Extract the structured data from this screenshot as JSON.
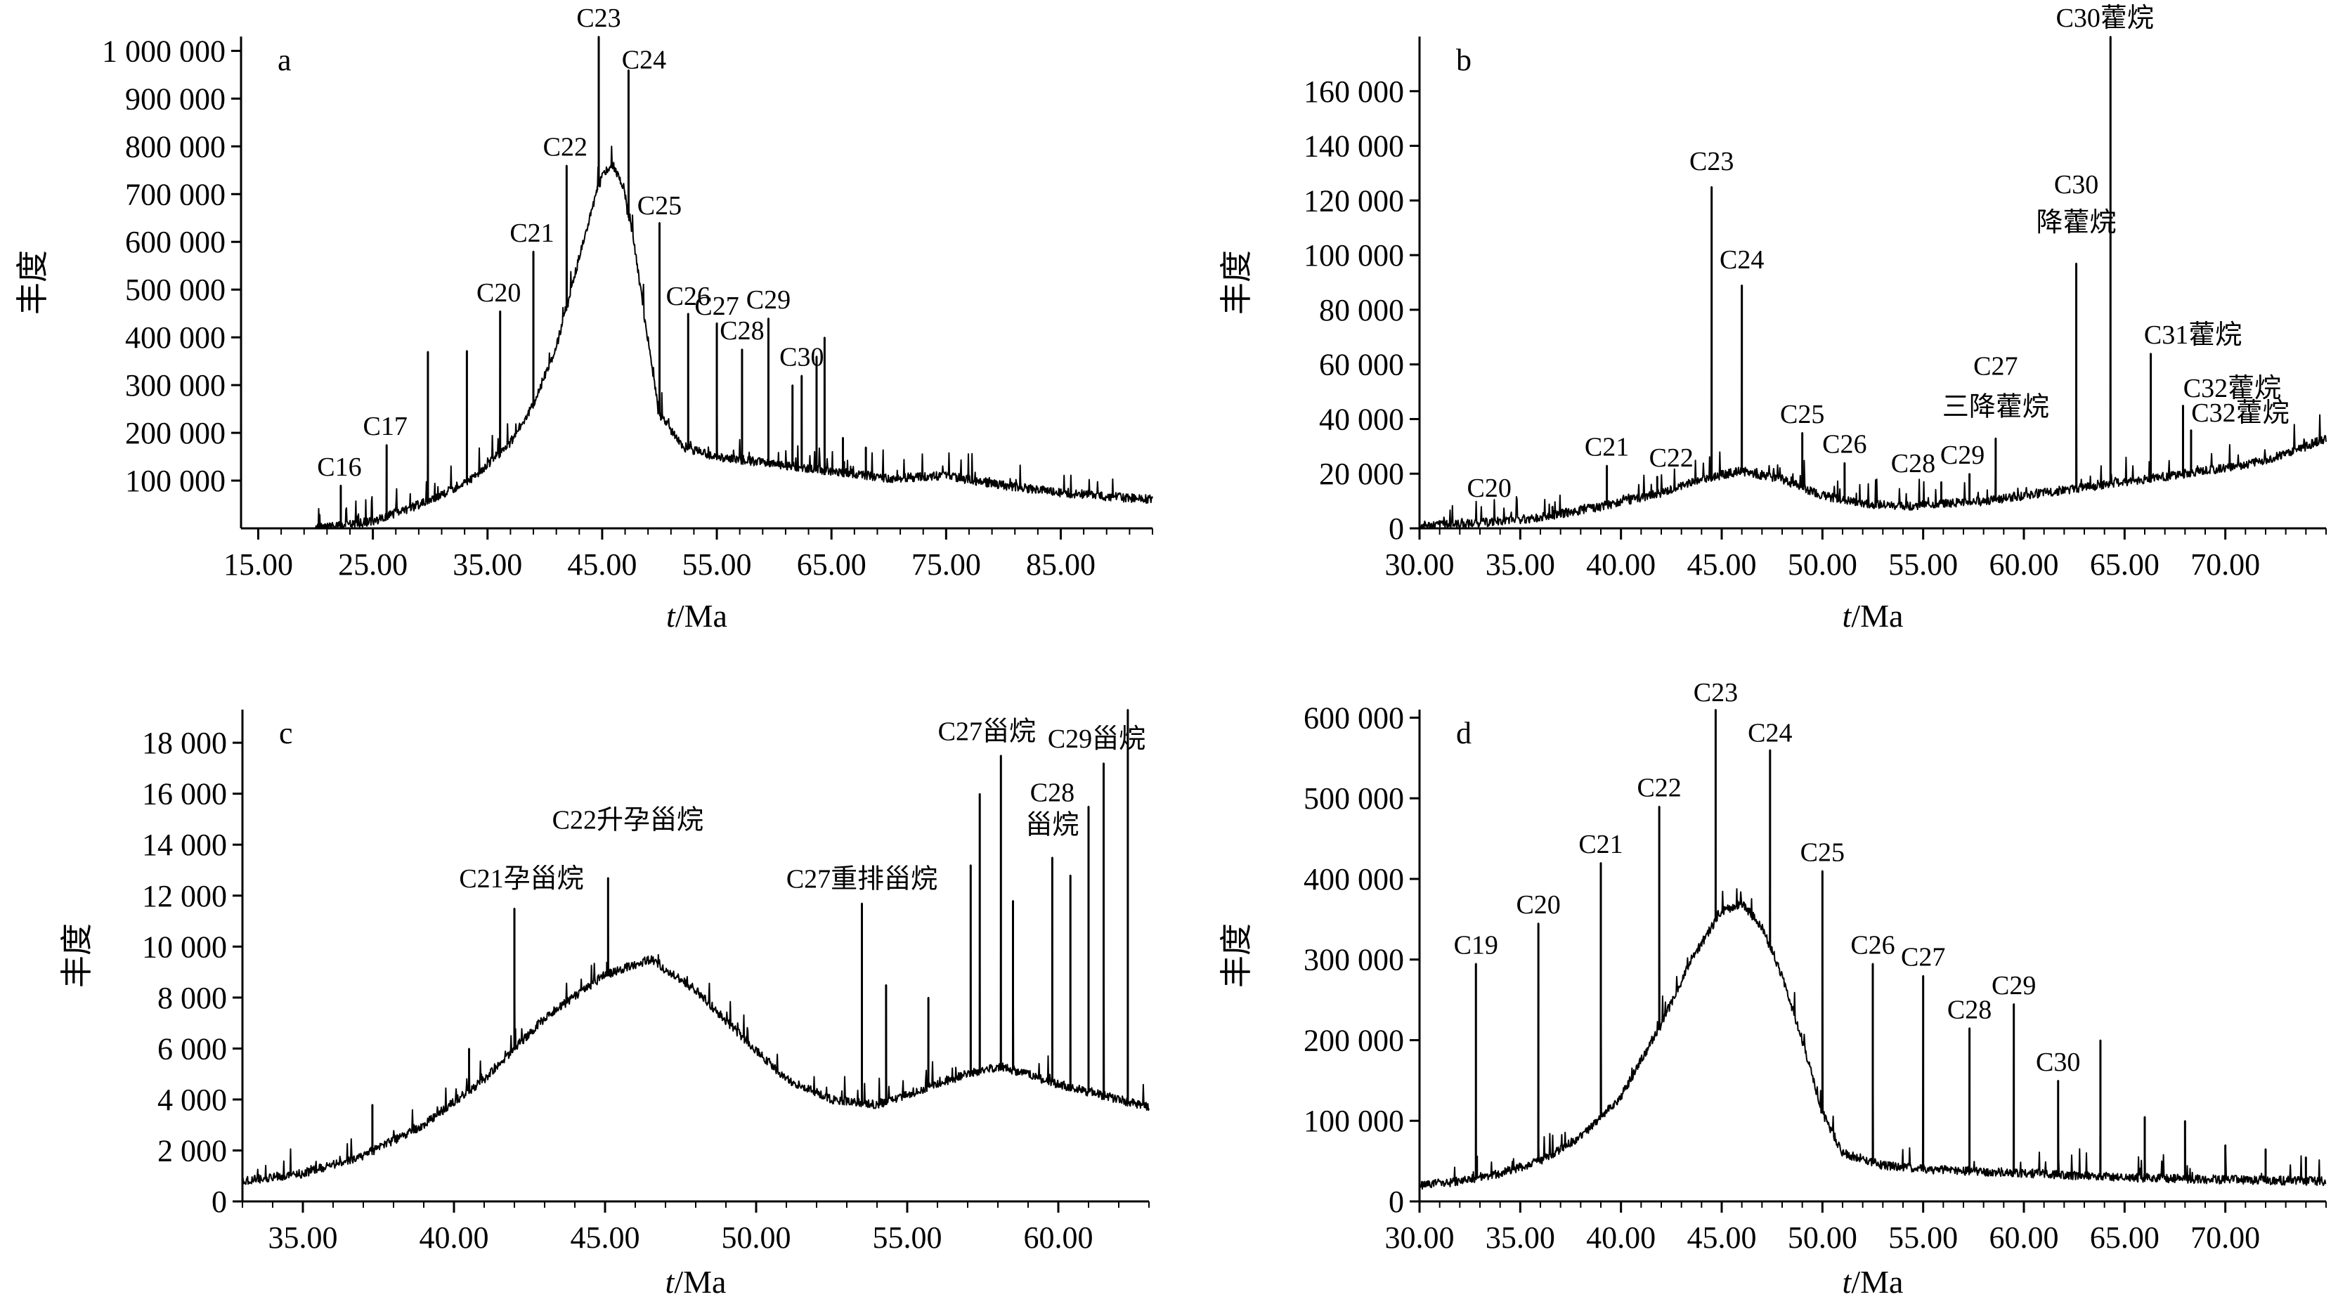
{
  "chart_data": [
    {
      "id": "a",
      "type": "line",
      "panel_label": "a",
      "ylabel": "丰度",
      "xlabel_italic": "t",
      "xlabel_unit": "/Ma",
      "xlim": [
        13.5,
        93
      ],
      "ylim": [
        0,
        1030000
      ],
      "xticks": [
        15,
        25,
        35,
        45,
        55,
        65,
        75,
        85
      ],
      "xtick_labels": [
        "15.00",
        "25.00",
        "35.00",
        "45.00",
        "55.00",
        "65.00",
        "75.00",
        "85.00"
      ],
      "yticks": [
        100000,
        200000,
        300000,
        400000,
        500000,
        600000,
        700000,
        800000,
        900000,
        1000000
      ],
      "ytick_labels": [
        "100 000",
        "200 000",
        "300 000",
        "400 000",
        "500 000",
        "600 000",
        "700 000",
        "800 000",
        "900 000",
        "1 000 000"
      ],
      "baseline": {
        "x": [
          20,
          22,
          25,
          28,
          31,
          34,
          37,
          39,
          41,
          42.5,
          44,
          45,
          46,
          47,
          48,
          49,
          50,
          52,
          55,
          60,
          65,
          70,
          75,
          80,
          85,
          90,
          93
        ],
        "y": [
          0,
          5000,
          15000,
          40000,
          70000,
          110000,
          180000,
          260000,
          380000,
          520000,
          660000,
          740000,
          760000,
          700000,
          560000,
          390000,
          240000,
          170000,
          150000,
          135000,
          120000,
          105000,
          110000,
          90000,
          75000,
          65000,
          60000
        ]
      },
      "peaks": [
        {
          "x": 22.2,
          "y": 90000,
          "label": "C16"
        },
        {
          "x": 26.2,
          "y": 175000,
          "label": "C17"
        },
        {
          "x": 29.8,
          "y": 370000,
          "label": ""
        },
        {
          "x": 33.2,
          "y": 372000,
          "label": ""
        },
        {
          "x": 36.1,
          "y": 455000,
          "label": "C20"
        },
        {
          "x": 39.0,
          "y": 580000,
          "label": "C21"
        },
        {
          "x": 41.9,
          "y": 760000,
          "label": "C22"
        },
        {
          "x": 44.7,
          "y": 1030000,
          "label": "C23"
        },
        {
          "x": 47.3,
          "y": 960000,
          "label": "C24"
        },
        {
          "x": 50.0,
          "y": 640000,
          "label": "C25"
        },
        {
          "x": 52.5,
          "y": 450000,
          "label": "C26"
        },
        {
          "x": 55.0,
          "y": 430000,
          "label": "C27"
        },
        {
          "x": 57.2,
          "y": 375000,
          "label": "C28"
        },
        {
          "x": 59.5,
          "y": 440000,
          "label": "C29"
        },
        {
          "x": 61.6,
          "y": 300000,
          "label": ""
        },
        {
          "x": 62.4,
          "y": 320000,
          "label": "C30"
        },
        {
          "x": 63.7,
          "y": 360000,
          "label": ""
        },
        {
          "x": 64.4,
          "y": 400000,
          "label": ""
        },
        {
          "x": 66.0,
          "y": 190000,
          "label": ""
        },
        {
          "x": 68.0,
          "y": 170000,
          "label": ""
        }
      ]
    },
    {
      "id": "b",
      "type": "line",
      "panel_label": "b",
      "ylabel": "丰度",
      "xlabel_italic": "t",
      "xlabel_unit": "/Ma",
      "xlim": [
        30,
        75
      ],
      "ylim": [
        0,
        180000
      ],
      "xticks": [
        30,
        35,
        40,
        45,
        50,
        55,
        60,
        65,
        70
      ],
      "xtick_labels": [
        "30.00",
        "35.00",
        "40.00",
        "45.00",
        "50.00",
        "55.00",
        "60.00",
        "65.00",
        "70.00"
      ],
      "yticks": [
        0,
        20000,
        40000,
        60000,
        80000,
        100000,
        120000,
        140000,
        160000
      ],
      "ytick_labels": [
        "0",
        "20 000",
        "40 000",
        "60 000",
        "80 000",
        "100 000",
        "120 000",
        "140 000",
        "160 000"
      ],
      "baseline": {
        "x": [
          30,
          33,
          36,
          39,
          42,
          44,
          46,
          48,
          50,
          52,
          54,
          56,
          58,
          60,
          62,
          64,
          66,
          68,
          70,
          72,
          74,
          75
        ],
        "y": [
          1000,
          2000,
          4000,
          8000,
          13000,
          18000,
          21000,
          18000,
          12000,
          9000,
          8000,
          9000,
          10000,
          12000,
          14000,
          16000,
          18000,
          20000,
          22000,
          25000,
          30000,
          33000
        ]
      },
      "peaks": [
        {
          "x": 36.6,
          "y": 8000,
          "label": "C20"
        },
        {
          "x": 39.3,
          "y": 23000,
          "label": "C21"
        },
        {
          "x": 41.8,
          "y": 19000,
          "label": "C22"
        },
        {
          "x": 44.5,
          "y": 125000,
          "label": "C23"
        },
        {
          "x": 46.0,
          "y": 89000,
          "label": "C24"
        },
        {
          "x": 49.0,
          "y": 35000,
          "label": "C25"
        },
        {
          "x": 51.1,
          "y": 24000,
          "label": "C26"
        },
        {
          "x": 55.9,
          "y": 17000,
          "label": "C28"
        },
        {
          "x": 57.3,
          "y": 20000,
          "label": "C29"
        },
        {
          "x": 58.6,
          "y": 33000,
          "label": "C27"
        },
        {
          "x": 62.6,
          "y": 97000,
          "label": "C30"
        },
        {
          "x": 64.3,
          "y": 180000,
          "label": "C30藿烷"
        },
        {
          "x": 66.3,
          "y": 64000,
          "label": "C31藿烷"
        },
        {
          "x": 67.9,
          "y": 45000,
          "label": "C32藿烷"
        },
        {
          "x": 68.3,
          "y": 36000,
          "label": "C32藿烷"
        }
      ],
      "labels": {
        "C27_line2": "三降藿烷",
        "C30_line2": "降藿烷"
      }
    },
    {
      "id": "c",
      "type": "line",
      "panel_label": "c",
      "ylabel": "丰度",
      "xlabel_italic": "t",
      "xlabel_unit": "/Ma",
      "xlim": [
        33,
        63
      ],
      "ylim": [
        0,
        19300
      ],
      "xticks": [
        35,
        40,
        45,
        50,
        55,
        60
      ],
      "xtick_labels": [
        "35.00",
        "40.00",
        "45.00",
        "50.00",
        "55.00",
        "60.00"
      ],
      "yticks": [
        0,
        2000,
        4000,
        6000,
        8000,
        10000,
        12000,
        14000,
        16000,
        18000
      ],
      "ytick_labels": [
        "0",
        "2 000",
        "4 000",
        "6 000",
        "8 000",
        "10 000",
        "12 000",
        "14 000",
        "16 000",
        "18 000"
      ],
      "baseline": {
        "x": [
          33,
          35,
          37,
          39,
          41,
          43,
          45,
          46.5,
          48,
          49.5,
          51,
          52.5,
          54,
          55,
          56,
          57,
          58,
          59,
          60,
          61,
          62,
          63
        ],
        "y": [
          800,
          1100,
          1800,
          3000,
          4800,
          7200,
          8900,
          9500,
          8300,
          6500,
          4800,
          4000,
          3800,
          4200,
          4600,
          5000,
          5300,
          5000,
          4600,
          4300,
          4000,
          3700
        ]
      },
      "peaks": [
        {
          "x": 37.3,
          "y": 3800,
          "label": ""
        },
        {
          "x": 40.5,
          "y": 6000,
          "label": ""
        },
        {
          "x": 42.0,
          "y": 11500,
          "label": "C21孕甾烷"
        },
        {
          "x": 45.1,
          "y": 12700,
          "label": "C22升孕甾烷"
        },
        {
          "x": 53.5,
          "y": 11700,
          "label": "C27重排甾烷"
        },
        {
          "x": 54.3,
          "y": 8500,
          "label": ""
        },
        {
          "x": 55.7,
          "y": 8000,
          "label": ""
        },
        {
          "x": 57.1,
          "y": 13200,
          "label": ""
        },
        {
          "x": 57.4,
          "y": 16000,
          "label": ""
        },
        {
          "x": 58.1,
          "y": 17500,
          "label": "C27甾烷"
        },
        {
          "x": 58.5,
          "y": 11800,
          "label": ""
        },
        {
          "x": 59.8,
          "y": 13500,
          "label": "C28"
        },
        {
          "x": 60.4,
          "y": 12800,
          "label": ""
        },
        {
          "x": 61.0,
          "y": 15500,
          "label": ""
        },
        {
          "x": 61.5,
          "y": 17200,
          "label": "C29甾烷"
        },
        {
          "x": 62.3,
          "y": 19300,
          "label": ""
        }
      ],
      "labels": {
        "C28_line2": "甾烷"
      }
    },
    {
      "id": "d",
      "type": "line",
      "panel_label": "d",
      "ylabel": "丰度",
      "xlabel_italic": "t",
      "xlabel_unit": "/Ma",
      "xlim": [
        30,
        75
      ],
      "ylim": [
        0,
        610000
      ],
      "xticks": [
        30,
        35,
        40,
        45,
        50,
        55,
        60,
        65,
        70
      ],
      "xtick_labels": [
        "30.00",
        "35.00",
        "40.00",
        "45.00",
        "50.00",
        "55.00",
        "60.00",
        "65.00",
        "70.00"
      ],
      "yticks": [
        0,
        100000,
        200000,
        300000,
        400000,
        500000,
        600000
      ],
      "ytick_labels": [
        "0",
        "100 000",
        "200 000",
        "300 000",
        "400 000",
        "500 000",
        "600 000"
      ],
      "baseline": {
        "x": [
          30,
          32,
          34,
          36,
          38,
          40,
          42,
          43.5,
          45,
          46,
          47,
          48,
          49,
          50,
          51,
          53,
          55,
          60,
          65,
          70,
          75
        ],
        "y": [
          20000,
          25000,
          35000,
          50000,
          80000,
          130000,
          220000,
          300000,
          360000,
          370000,
          340000,
          280000,
          200000,
          110000,
          60000,
          45000,
          40000,
          35000,
          30000,
          27000,
          25000
        ]
      },
      "peaks": [
        {
          "x": 32.8,
          "y": 295000,
          "label": "C19"
        },
        {
          "x": 35.9,
          "y": 345000,
          "label": "C20"
        },
        {
          "x": 39.0,
          "y": 420000,
          "label": "C21"
        },
        {
          "x": 41.9,
          "y": 490000,
          "label": "C22"
        },
        {
          "x": 44.7,
          "y": 610000,
          "label": "C23"
        },
        {
          "x": 47.4,
          "y": 560000,
          "label": "C24"
        },
        {
          "x": 50.0,
          "y": 410000,
          "label": "C25"
        },
        {
          "x": 52.5,
          "y": 295000,
          "label": "C26"
        },
        {
          "x": 55.0,
          "y": 280000,
          "label": "C27"
        },
        {
          "x": 57.3,
          "y": 215000,
          "label": "C28"
        },
        {
          "x": 59.5,
          "y": 245000,
          "label": "C29"
        },
        {
          "x": 61.7,
          "y": 150000,
          "label": "C30"
        },
        {
          "x": 63.8,
          "y": 200000,
          "label": ""
        },
        {
          "x": 66.0,
          "y": 105000,
          "label": ""
        },
        {
          "x": 68.0,
          "y": 100000,
          "label": ""
        },
        {
          "x": 70.0,
          "y": 70000,
          "label": ""
        },
        {
          "x": 72.0,
          "y": 65000,
          "label": ""
        },
        {
          "x": 74.0,
          "y": 55000,
          "label": ""
        }
      ]
    }
  ]
}
